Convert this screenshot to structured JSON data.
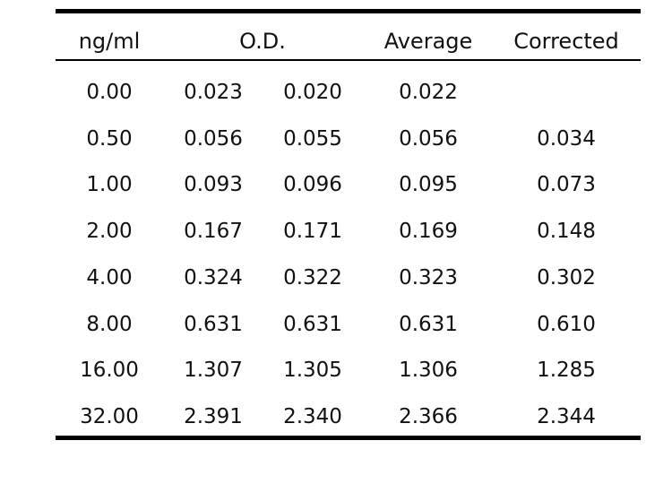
{
  "table": {
    "headers": {
      "concentration": "ng/ml",
      "od": "O.D.",
      "average": "Average",
      "corrected": "Corrected"
    },
    "rows": [
      {
        "concentration": "0.00",
        "od1": "0.023",
        "od2": "0.020",
        "average": "0.022",
        "corrected": ""
      },
      {
        "concentration": "0.50",
        "od1": "0.056",
        "od2": "0.055",
        "average": "0.056",
        "corrected": "0.034"
      },
      {
        "concentration": "1.00",
        "od1": "0.093",
        "od2": "0.096",
        "average": "0.095",
        "corrected": "0.073"
      },
      {
        "concentration": "2.00",
        "od1": "0.167",
        "od2": "0.171",
        "average": "0.169",
        "corrected": "0.148"
      },
      {
        "concentration": "4.00",
        "od1": "0.324",
        "od2": "0.322",
        "average": "0.323",
        "corrected": "0.302"
      },
      {
        "concentration": "8.00",
        "od1": "0.631",
        "od2": "0.631",
        "average": "0.631",
        "corrected": "0.610"
      },
      {
        "concentration": "16.00",
        "od1": "1.307",
        "od2": "1.305",
        "average": "1.306",
        "corrected": "1.285"
      },
      {
        "concentration": "32.00",
        "od1": "2.391",
        "od2": "2.340",
        "average": "2.366",
        "corrected": "2.344"
      }
    ]
  }
}
